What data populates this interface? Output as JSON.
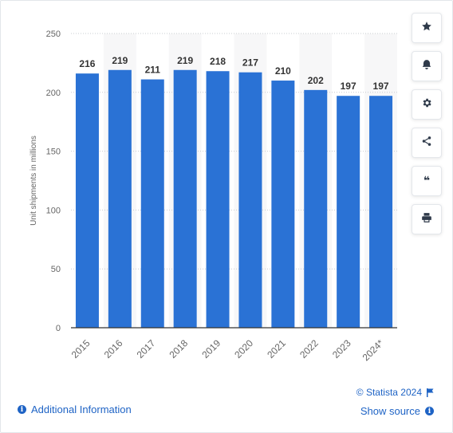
{
  "chart_data": {
    "type": "bar",
    "categories": [
      "2015",
      "2016",
      "2017",
      "2018",
      "2019",
      "2020",
      "2021",
      "2022",
      "2023",
      "2024*"
    ],
    "values": [
      216,
      219,
      211,
      219,
      218,
      217,
      210,
      202,
      197,
      197
    ],
    "title": "",
    "xlabel": "",
    "ylabel": "Unit shipments in millions",
    "ylim": [
      0,
      250
    ],
    "yticks": [
      0,
      50,
      100,
      150,
      200,
      250
    ],
    "grid": true,
    "bar_color": "#2a72d5",
    "alt_column_shading": true
  },
  "toolbar": {
    "buttons": [
      {
        "name": "favorite",
        "icon": "star-icon"
      },
      {
        "name": "notification",
        "icon": "bell-icon"
      },
      {
        "name": "settings",
        "icon": "gear-icon"
      },
      {
        "name": "share",
        "icon": "share-icon"
      },
      {
        "name": "cite",
        "icon": "quote-icon",
        "glyph": "❝"
      },
      {
        "name": "print",
        "icon": "print-icon"
      }
    ]
  },
  "footer": {
    "additional_info": "Additional Information",
    "copyright": "© Statista 2024",
    "show_source": "Show source"
  },
  "colors": {
    "accent": "#1e63c5",
    "bar": "#2a72d5"
  }
}
